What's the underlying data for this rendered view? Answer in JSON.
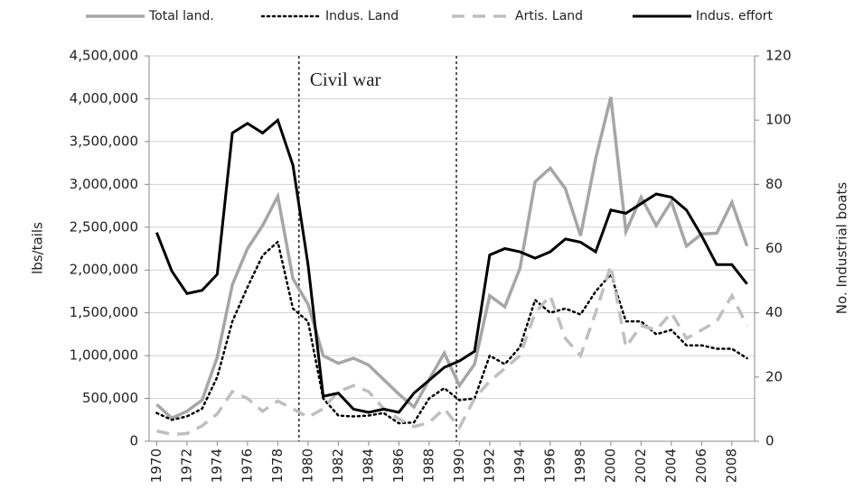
{
  "chart_data": {
    "type": "line",
    "x": [
      1970,
      1971,
      1972,
      1973,
      1974,
      1975,
      1976,
      1977,
      1978,
      1979,
      1980,
      1981,
      1982,
      1983,
      1984,
      1985,
      1986,
      1987,
      1988,
      1989,
      1990,
      1991,
      1992,
      1993,
      1994,
      1995,
      1996,
      1997,
      1998,
      1999,
      2000,
      2001,
      2002,
      2003,
      2004,
      2005,
      2006,
      2007,
      2008,
      2009
    ],
    "xlim": [
      1969.5,
      2009.5
    ],
    "xticks": [
      1970,
      1972,
      1974,
      1976,
      1978,
      1980,
      1982,
      1984,
      1986,
      1988,
      1990,
      1992,
      1994,
      1996,
      1998,
      2000,
      2002,
      2004,
      2006,
      2008
    ],
    "ylabel": "lbs/tails",
    "y2label": "No. Industrial boats",
    "ylim": [
      0,
      4500000
    ],
    "yticks": [
      0,
      {
        "value": 500000,
        "label": "500,000"
      },
      {
        "value": 1000000,
        "label": "1,000,000"
      },
      {
        "value": 1500000,
        "label": "1,500,000"
      },
      {
        "value": 2000000,
        "label": "2,000,000"
      },
      {
        "value": 2500000,
        "label": "2,500,000"
      },
      {
        "value": 3000000,
        "label": "3,000,000"
      },
      {
        "value": 3500000,
        "label": "3,500,000"
      },
      {
        "value": 4000000,
        "label": "4,000,000"
      },
      {
        "value": 4500000,
        "label": "4,500,000"
      }
    ],
    "y2lim": [
      0,
      120
    ],
    "y2ticks": [
      0,
      20,
      40,
      60,
      80,
      100,
      120
    ],
    "grid": true,
    "legend": "top",
    "annotations": [
      {
        "text": "Civil war",
        "x": 1979.4
      },
      {
        "x": 1989.8
      }
    ],
    "series": [
      {
        "name": "Total land.",
        "color": "#a6a6a6",
        "style": "solid",
        "width": 3.5,
        "values": [
          430000,
          270000,
          350000,
          480000,
          980000,
          1830000,
          2250000,
          2520000,
          2860000,
          1900000,
          1600000,
          1000000,
          910000,
          970000,
          890000,
          720000,
          550000,
          400000,
          720000,
          1030000,
          650000,
          900000,
          1700000,
          1570000,
          2020000,
          3030000,
          3190000,
          2950000,
          2400000,
          3300000,
          4020000,
          2450000,
          2850000,
          2520000,
          2800000,
          2280000,
          2420000,
          2430000,
          2790000,
          2280000
        ]
      },
      {
        "name": "Indus. Land",
        "color": "#000000",
        "style": "dotted",
        "width": 2.5,
        "values": [
          330000,
          250000,
          290000,
          380000,
          750000,
          1400000,
          1800000,
          2170000,
          2330000,
          1550000,
          1400000,
          500000,
          300000,
          290000,
          300000,
          330000,
          210000,
          220000,
          500000,
          620000,
          480000,
          500000,
          1000000,
          900000,
          1100000,
          1650000,
          1500000,
          1550000,
          1480000,
          1750000,
          1950000,
          1400000,
          1400000,
          1250000,
          1300000,
          1120000,
          1120000,
          1080000,
          1080000,
          970000
        ]
      },
      {
        "name": "Artis. Land",
        "color": "#bfbfbf",
        "style": "dashed",
        "width": 3.5,
        "values": [
          120000,
          80000,
          90000,
          180000,
          320000,
          580000,
          500000,
          350000,
          470000,
          380000,
          280000,
          380000,
          580000,
          650000,
          580000,
          380000,
          260000,
          170000,
          220000,
          380000,
          160000,
          500000,
          700000,
          850000,
          1000000,
          1500000,
          1700000,
          1200000,
          1000000,
          1500000,
          2050000,
          1100000,
          1350000,
          1300000,
          1500000,
          1200000,
          1300000,
          1400000,
          1700000,
          1350000
        ]
      },
      {
        "name": "Indus. effort",
        "color": "#000000",
        "style": "solid",
        "width": 3,
        "axis": "y2",
        "values": [
          65,
          53,
          46,
          47,
          52,
          96,
          99,
          96,
          100,
          86,
          55,
          14,
          15,
          10,
          9,
          10,
          9,
          15,
          19,
          23,
          25,
          28,
          58,
          60,
          59,
          57,
          59,
          63,
          62,
          59,
          72,
          71,
          74,
          77,
          76,
          72,
          64,
          55,
          55,
          49
        ]
      }
    ]
  }
}
